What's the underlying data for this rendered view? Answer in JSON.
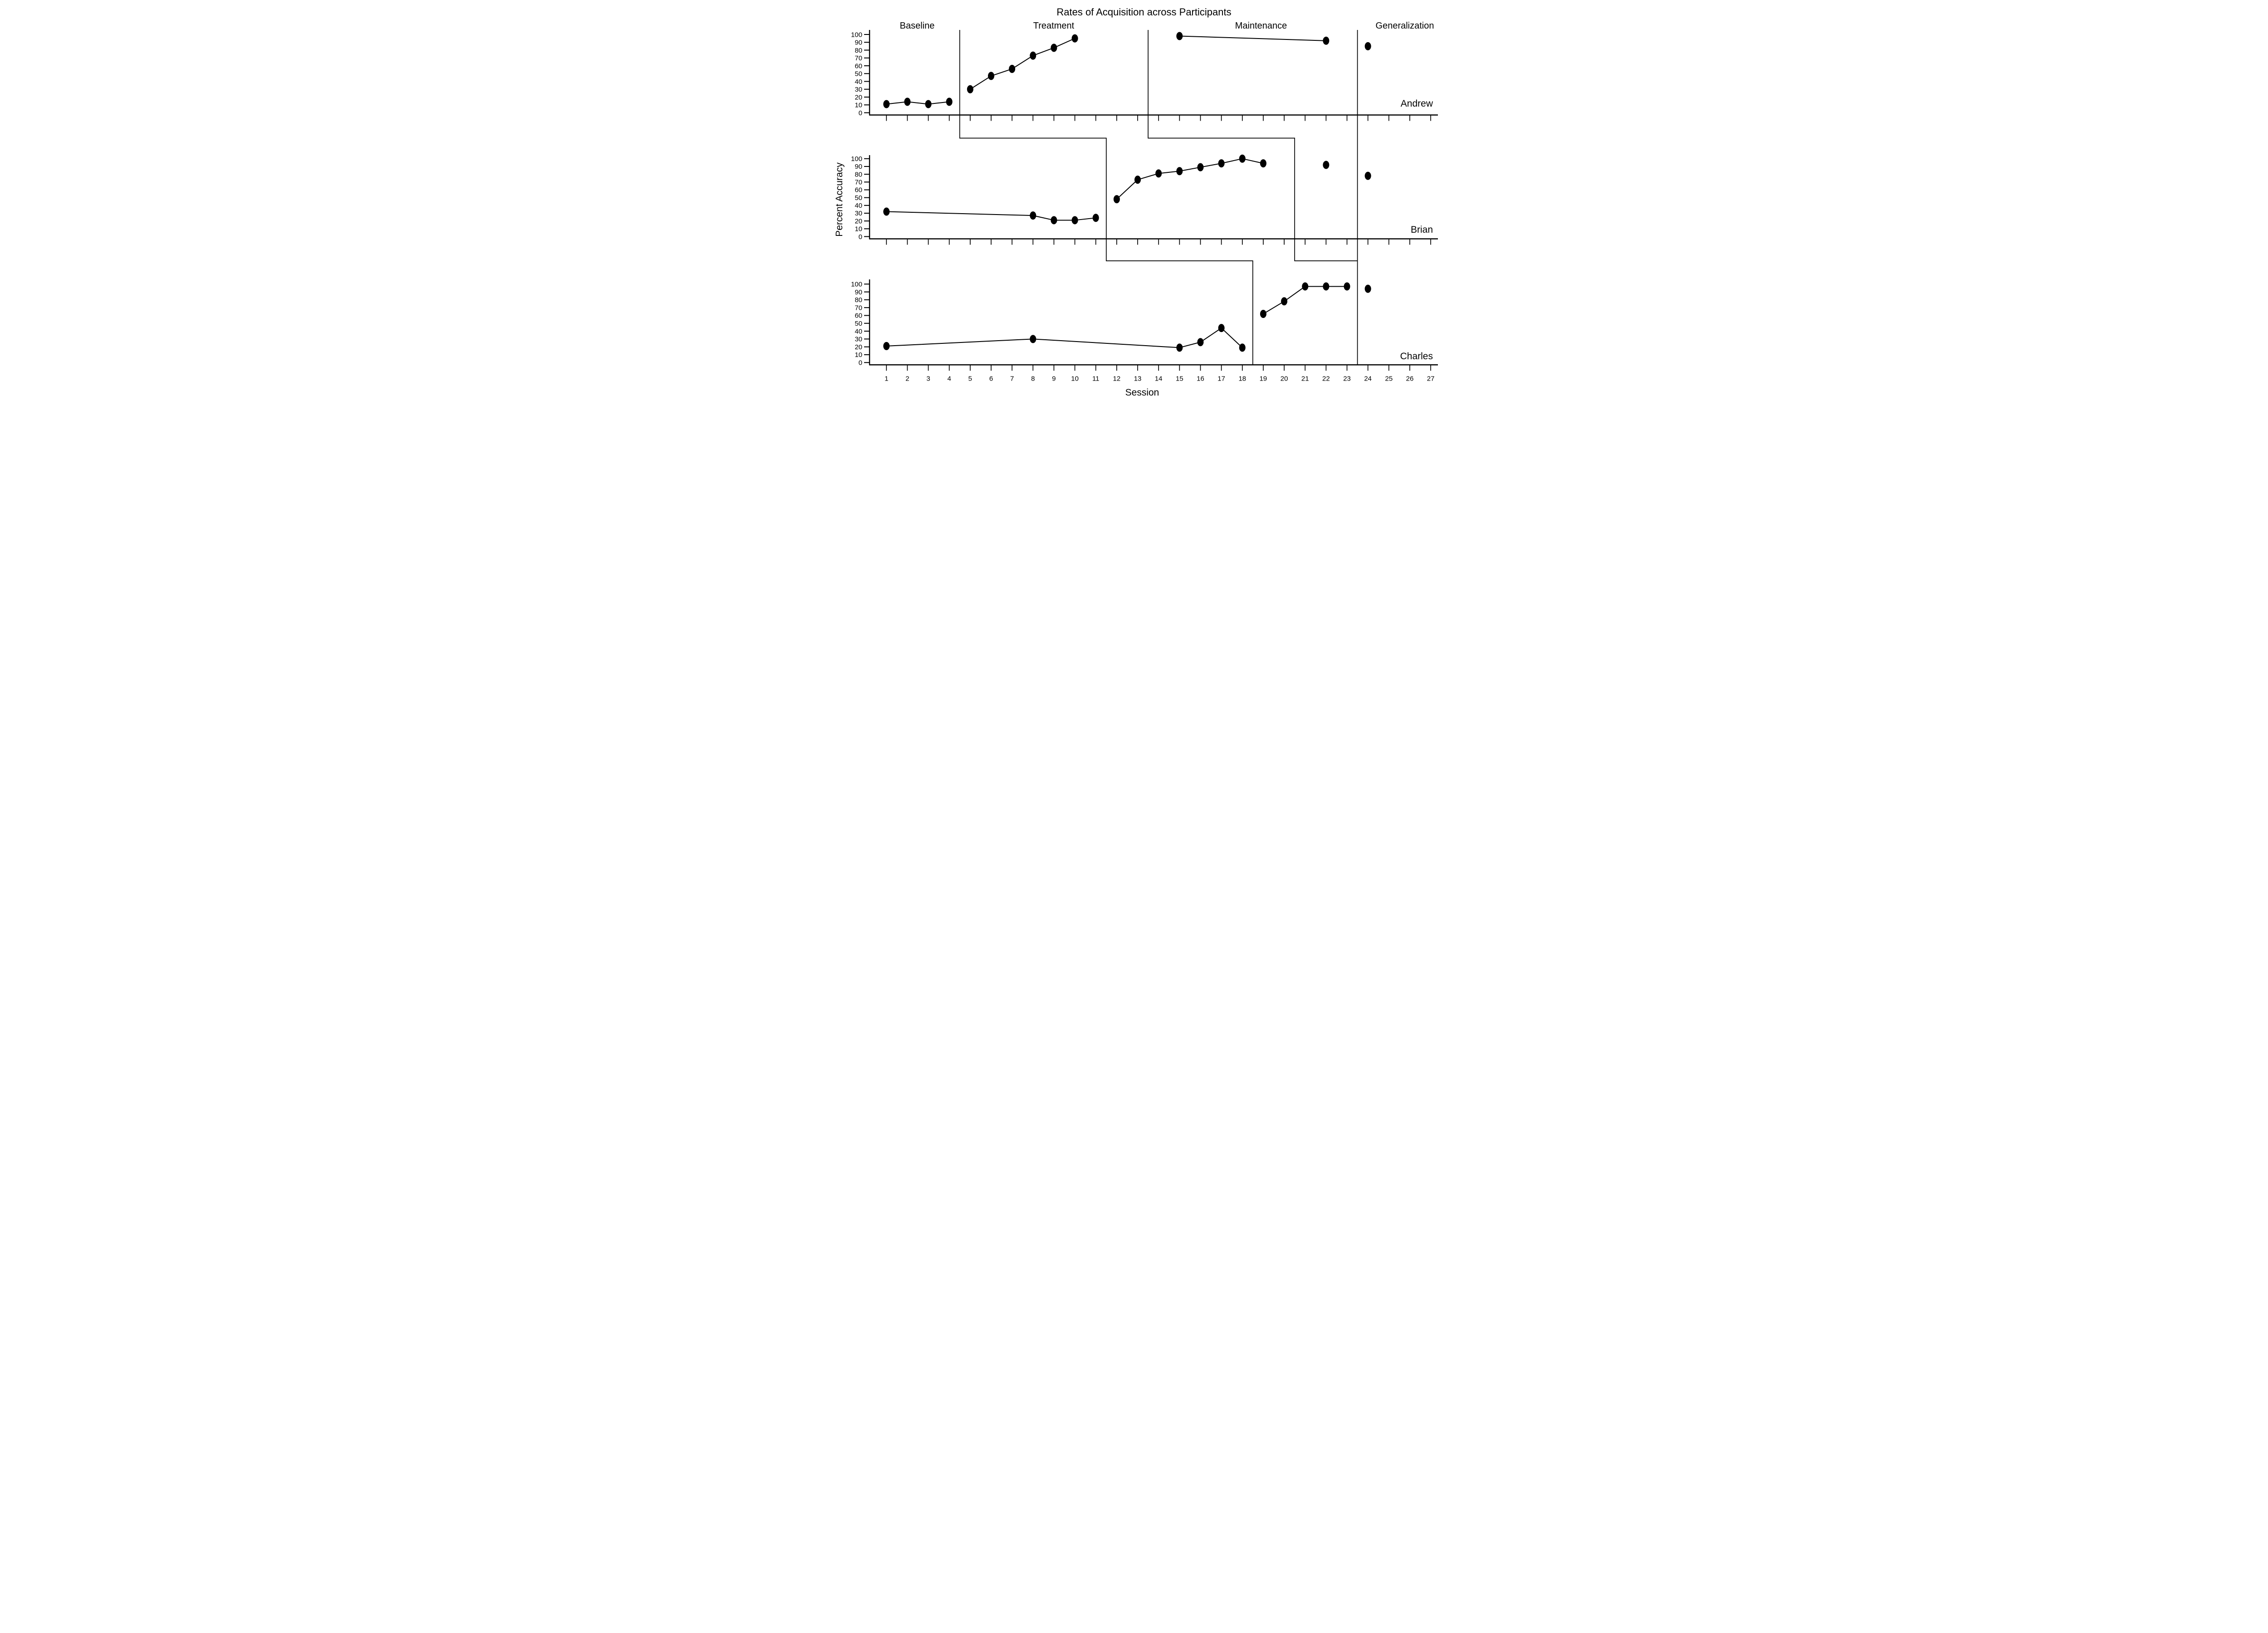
{
  "chart_data": {
    "type": "line",
    "title": "Rates of Acquisition across Participants",
    "xlabel": "Session",
    "ylabel": "Percent Accuracy",
    "xlim": [
      1,
      27
    ],
    "ylim": [
      0,
      100
    ],
    "grid": false,
    "legend": "none",
    "x_ticks": [
      1,
      2,
      3,
      4,
      5,
      6,
      7,
      8,
      9,
      10,
      11,
      12,
      13,
      14,
      15,
      16,
      17,
      18,
      19,
      20,
      21,
      22,
      23,
      24,
      25,
      26,
      27
    ],
    "y_ticks": [
      0,
      10,
      20,
      30,
      40,
      50,
      60,
      70,
      80,
      90,
      100
    ],
    "marker": "filled-black-ellipse",
    "colors": {
      "foreground": "#000000",
      "background": "#ffffff"
    },
    "phases": [
      {
        "label": "Baseline"
      },
      {
        "label": "Treatment"
      },
      {
        "label": "Maintenance"
      },
      {
        "label": "Generalization"
      }
    ],
    "stepped_phase_lines": [
      {
        "x_by_panel": [
          4.5,
          11.5,
          18.5
        ]
      },
      {
        "x_by_panel": [
          13.5,
          20.5,
          23.5
        ]
      }
    ],
    "generalization_line_x": 23.5,
    "participants": [
      {
        "name": "Andrew",
        "phase_change_sessions": [
          4.5,
          13.5,
          23.5
        ],
        "segments": [
          {
            "phase": "Baseline",
            "points": [
              [
                1,
                11
              ],
              [
                2,
                14
              ],
              [
                3,
                11
              ],
              [
                4,
                14
              ]
            ]
          },
          {
            "phase": "Treatment",
            "points": [
              [
                5,
                30
              ],
              [
                6,
                47
              ],
              [
                7,
                56
              ],
              [
                8,
                73
              ],
              [
                9,
                83
              ],
              [
                10,
                95
              ]
            ]
          },
          {
            "phase": "Maintenance",
            "points": [
              [
                15,
                98
              ],
              [
                22,
                92
              ]
            ]
          },
          {
            "phase": "Generalization",
            "points": [
              [
                24,
                85
              ]
            ]
          }
        ]
      },
      {
        "name": "Brian",
        "phase_change_sessions": [
          11.5,
          20.5,
          23.5
        ],
        "segments": [
          {
            "phase": "Baseline",
            "points": [
              [
                1,
                32
              ],
              [
                8,
                27
              ],
              [
                9,
                21
              ],
              [
                10,
                21
              ],
              [
                11,
                24
              ]
            ]
          },
          {
            "phase": "Treatment",
            "points": [
              [
                12,
                48
              ],
              [
                13,
                73
              ],
              [
                14,
                81
              ],
              [
                15,
                84
              ],
              [
                16,
                89
              ],
              [
                17,
                94
              ],
              [
                18,
                100
              ],
              [
                19,
                94
              ]
            ]
          },
          {
            "phase": "Maintenance",
            "points": [
              [
                22,
                92
              ]
            ]
          },
          {
            "phase": "Generalization",
            "points": [
              [
                24,
                78
              ]
            ]
          }
        ]
      },
      {
        "name": "Charles",
        "phase_change_sessions": [
          18.5,
          23.5
        ],
        "segments": [
          {
            "phase": "Baseline",
            "points": [
              [
                1,
                21
              ],
              [
                8,
                30
              ],
              [
                15,
                19
              ],
              [
                16,
                26
              ],
              [
                17,
                44
              ],
              [
                18,
                19
              ]
            ]
          },
          {
            "phase": "Treatment",
            "points": [
              [
                19,
                62
              ],
              [
                20,
                78
              ],
              [
                21,
                97
              ],
              [
                22,
                97
              ],
              [
                23,
                97
              ]
            ]
          },
          {
            "phase": "Generalization",
            "points": [
              [
                24,
                94
              ]
            ]
          }
        ]
      }
    ]
  }
}
